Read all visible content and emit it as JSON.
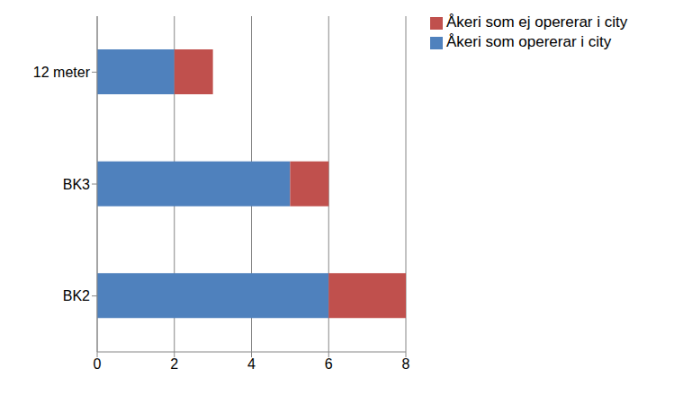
{
  "chart_data": {
    "type": "bar",
    "orientation": "horizontal",
    "stacked": true,
    "categories": [
      "12 meter",
      "BK3",
      "BK2"
    ],
    "series": [
      {
        "name": "Åkeri som opererar i city",
        "color": "#4f81bd",
        "values": [
          2,
          5,
          6
        ]
      },
      {
        "name": "Åkeri som ej opererar i city",
        "color": "#c0504d",
        "values": [
          1,
          1,
          2
        ]
      }
    ],
    "xlim": [
      0,
      8
    ],
    "xticks": [
      0,
      2,
      4,
      6,
      8
    ],
    "grid": true,
    "legend": "top right"
  }
}
